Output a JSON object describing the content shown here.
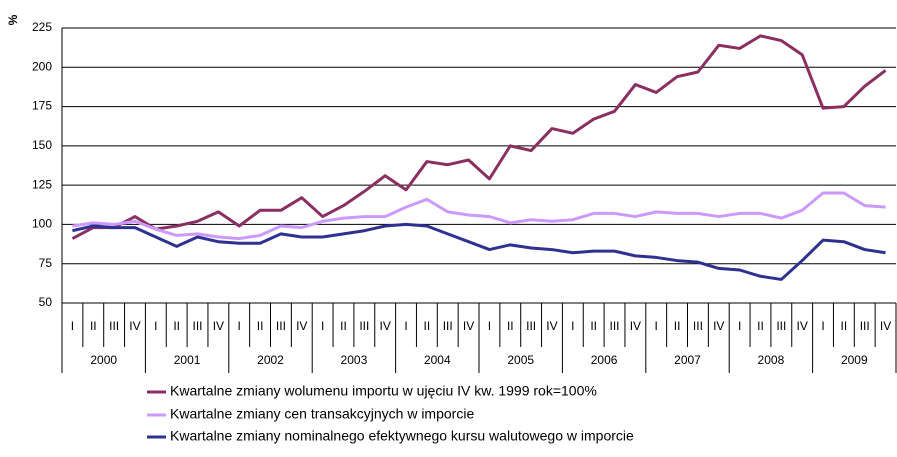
{
  "chart_data": {
    "type": "line",
    "y_label": "%",
    "categories": [
      "I",
      "II",
      "III",
      "IV",
      "I",
      "II",
      "III",
      "IV",
      "I",
      "II",
      "III",
      "IV",
      "I",
      "II",
      "III",
      "IV",
      "I",
      "II",
      "III",
      "IV",
      "I",
      "II",
      "III",
      "IV",
      "I",
      "II",
      "III",
      "IV",
      "I",
      "II",
      "III",
      "IV",
      "I",
      "II",
      "III",
      "IV",
      "I",
      "II",
      "III",
      "IV"
    ],
    "years": [
      "2000",
      "2001",
      "2002",
      "2003",
      "2004",
      "2005",
      "2006",
      "2007",
      "2008",
      "2009"
    ],
    "ylim": [
      50,
      225
    ],
    "yticks": [
      50,
      75,
      100,
      125,
      150,
      175,
      200,
      225
    ],
    "grid": true,
    "legend": "bottom",
    "series": [
      {
        "name": "Kwartalne zmiany wolumenu importu w ujęciu IV kw. 1999 rok=100%",
        "color": "#8b2f62",
        "values": [
          91,
          98,
          98,
          105,
          97,
          99,
          102,
          108,
          99,
          109,
          109,
          117,
          105,
          112,
          121,
          131,
          122,
          140,
          138,
          141,
          129,
          150,
          147,
          161,
          158,
          167,
          172,
          189,
          184,
          194,
          197,
          214,
          212,
          220,
          217,
          208,
          174,
          175,
          188,
          198
        ]
      },
      {
        "name": "Kwartalne zmiany cen transakcyjnych w imporcie",
        "color": "#cc99ff",
        "values": [
          99,
          101,
          100,
          102,
          97,
          93,
          94,
          92,
          91,
          93,
          99,
          98,
          102,
          104,
          105,
          105,
          111,
          116,
          108,
          106,
          105,
          101,
          103,
          102,
          103,
          107,
          107,
          105,
          108,
          107,
          107,
          105,
          107,
          107,
          104,
          109,
          120,
          120,
          112,
          111
        ]
      },
      {
        "name": "Kwartalne zmiany nominalnego efektywnego kursu walutowego w imporcie",
        "color": "#2e3192",
        "values": [
          96,
          99,
          98,
          98,
          92,
          86,
          92,
          89,
          88,
          88,
          94,
          92,
          92,
          94,
          96,
          99,
          100,
          99,
          94,
          89,
          84,
          87,
          85,
          84,
          82,
          83,
          83,
          80,
          79,
          77,
          76,
          72,
          71,
          67,
          65,
          77,
          90,
          89,
          84,
          82
        ]
      }
    ]
  }
}
